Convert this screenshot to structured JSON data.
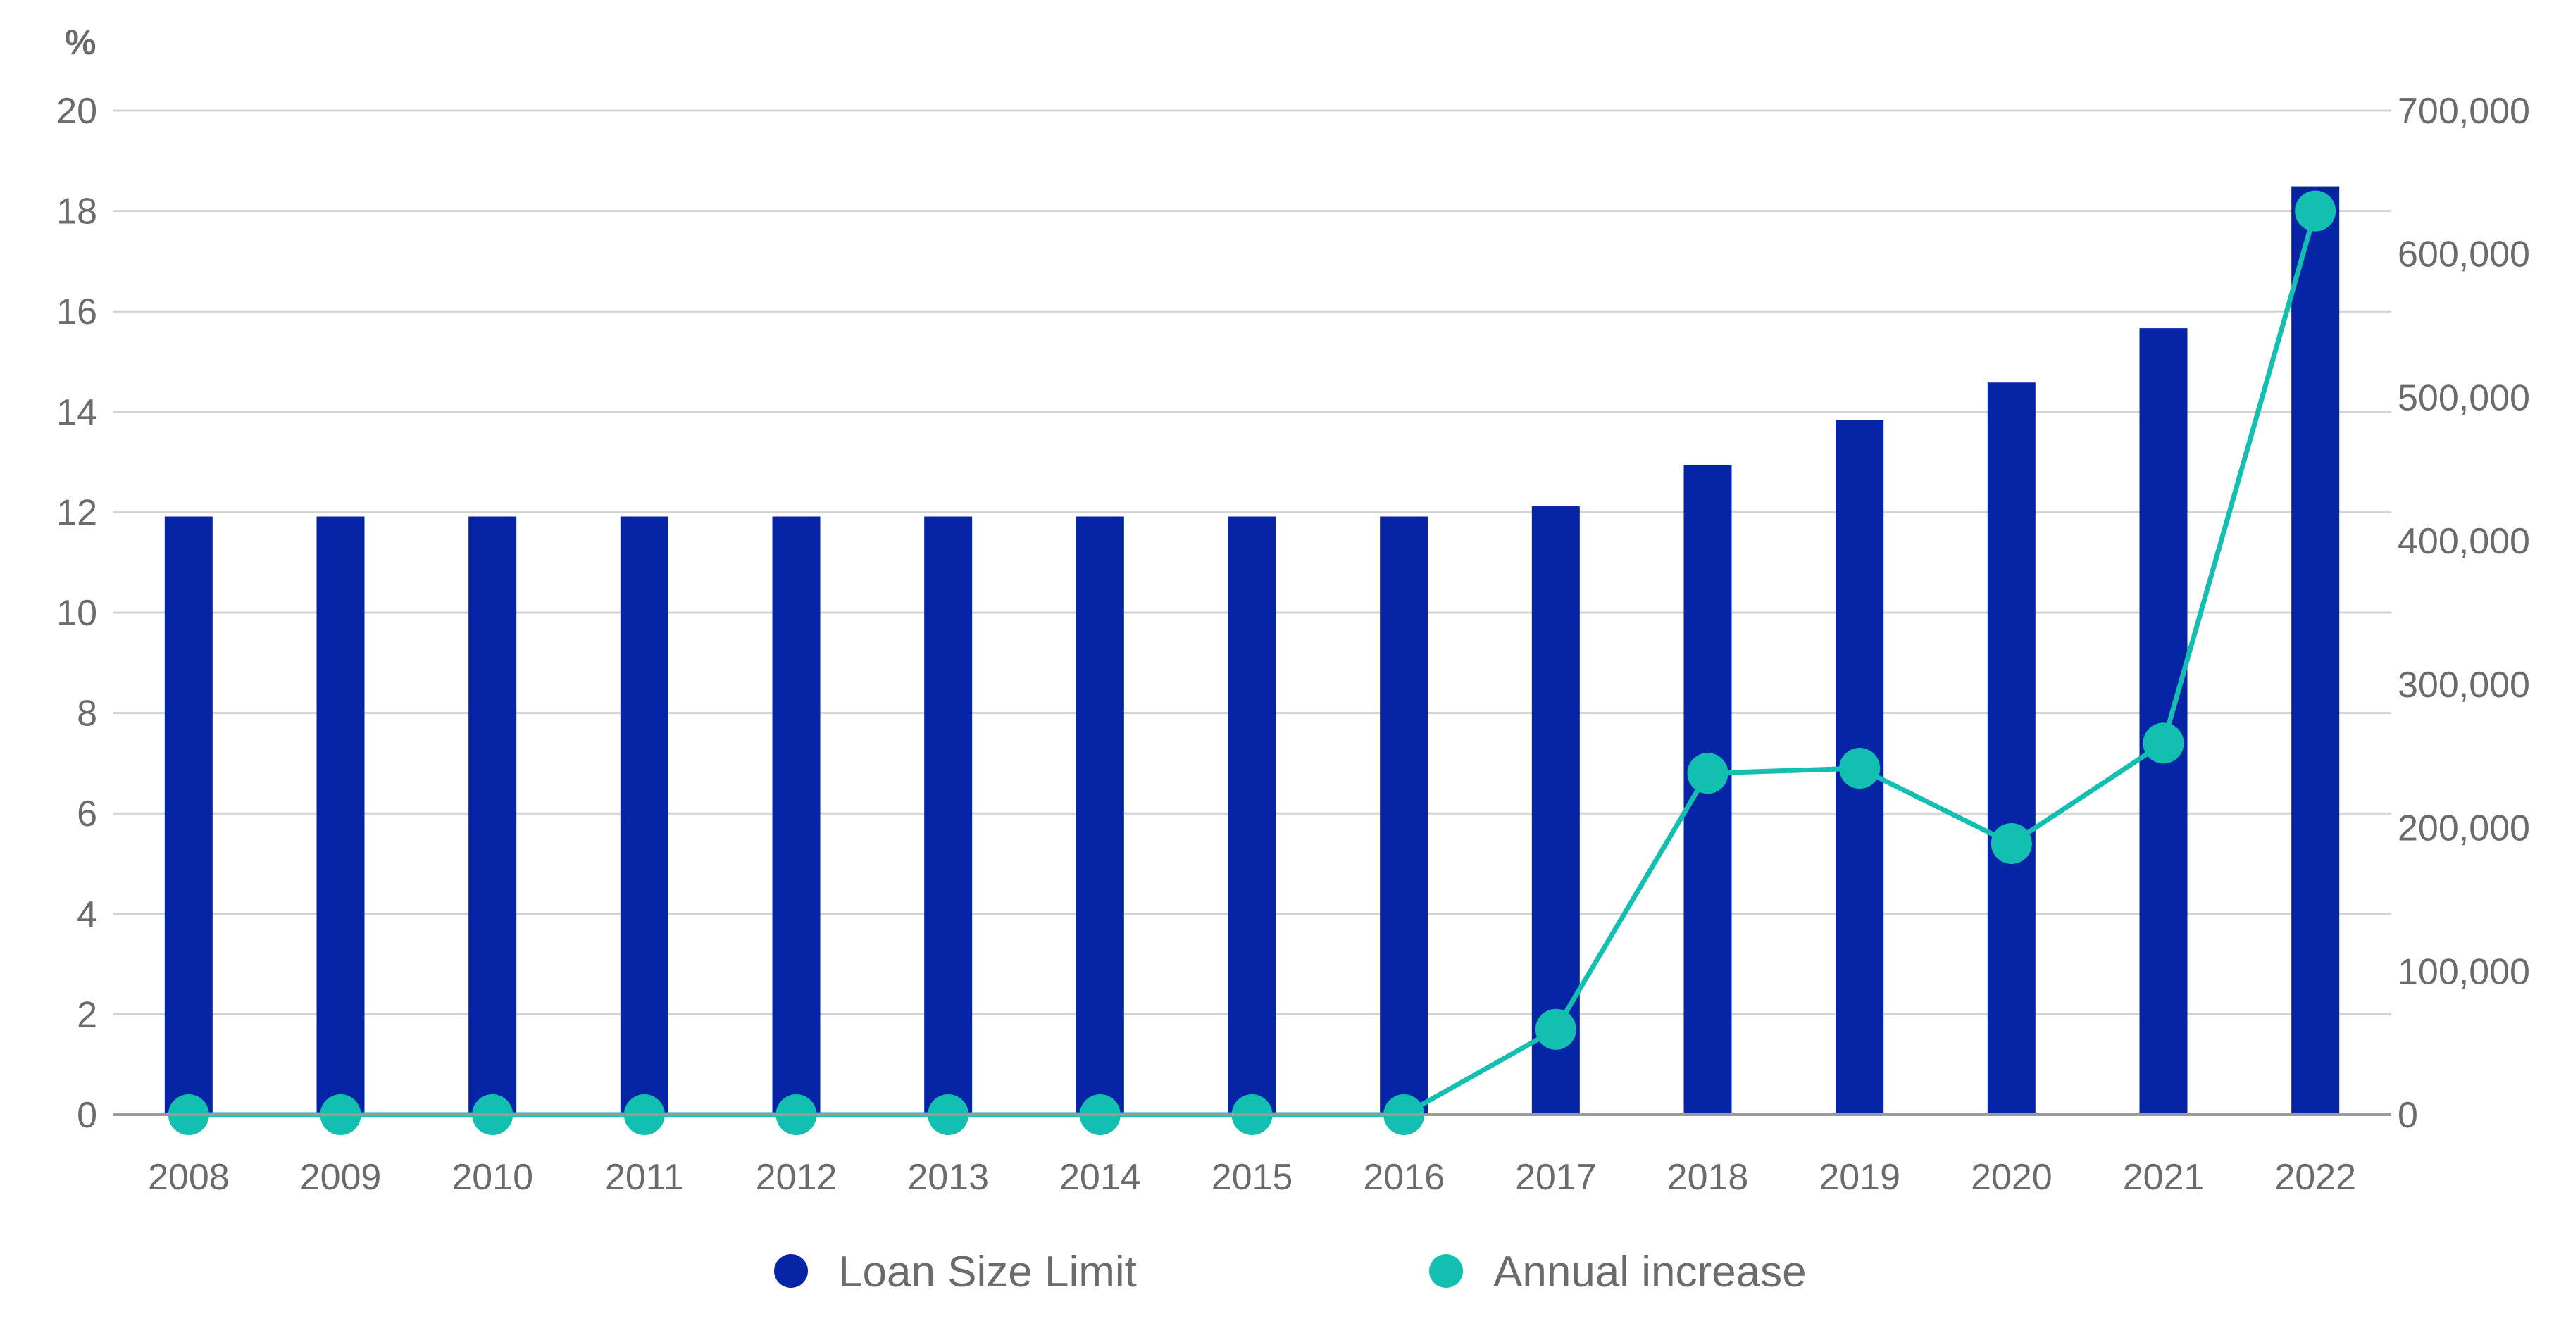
{
  "chart_data": {
    "type": "bar",
    "left_axis_unit": "%",
    "categories": [
      "2008",
      "2009",
      "2010",
      "2011",
      "2012",
      "2013",
      "2014",
      "2015",
      "2016",
      "2017",
      "2018",
      "2019",
      "2020",
      "2021",
      "2022"
    ],
    "y_left": {
      "ylim": [
        0,
        20
      ],
      "ticks": [
        0,
        2,
        4,
        6,
        8,
        10,
        12,
        14,
        16,
        18,
        20
      ]
    },
    "y_right": {
      "ylim": [
        0,
        700000
      ],
      "ticks": [
        "0",
        "100,000",
        "200,000",
        "300,000",
        "400,000",
        "500,000",
        "600,000",
        "700,000"
      ]
    },
    "series": [
      {
        "name": "Loan Size Limit",
        "type": "bar",
        "axis": "right",
        "color": "#0624a6",
        "values": [
          417000,
          417000,
          417000,
          417000,
          417000,
          417000,
          417000,
          417000,
          417000,
          424100,
          453100,
          484350,
          510400,
          548250,
          647200
        ]
      },
      {
        "name": "Annual increase",
        "type": "line",
        "axis": "left",
        "color": "#12bfb0",
        "values": [
          0,
          0,
          0,
          0,
          0,
          0,
          0,
          0,
          0,
          1.7,
          6.8,
          6.9,
          5.4,
          7.4,
          18.0
        ]
      }
    ],
    "grid": true,
    "legend_position": "bottom"
  }
}
